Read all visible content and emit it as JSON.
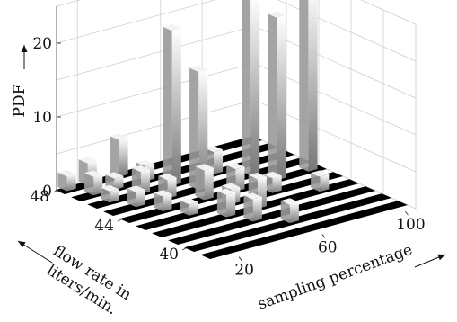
{
  "chart_data": {
    "type": "bar3d",
    "zlabel": "PDF",
    "xlabel": "sampling percentage",
    "ylabel_lines": [
      "flow rate in",
      "liters/min."
    ],
    "x_ticks": [
      20,
      60,
      100
    ],
    "y_ticks": [
      40,
      44,
      48
    ],
    "z_ticks": [
      0,
      10,
      20
    ],
    "xlim": [
      10,
      105
    ],
    "ylim": [
      38,
      48
    ],
    "zlim": [
      0,
      25
    ],
    "grid": true,
    "colors": {
      "bar_light": "#ffffff",
      "bar_dark": "#777777",
      "stripe": "#000000",
      "grid": "#cccccc"
    },
    "flow_rates": [
      39,
      40,
      41,
      42,
      43,
      44,
      45,
      46,
      47,
      48
    ],
    "bars": [
      {
        "x": 15,
        "y": 48,
        "z": 2
      },
      {
        "x": 20,
        "y": 47,
        "z": 2.5
      },
      {
        "x": 20,
        "y": 46,
        "z": 1.5
      },
      {
        "x": 25,
        "y": 48,
        "z": 3
      },
      {
        "x": 25,
        "y": 45,
        "z": 2
      },
      {
        "x": 30,
        "y": 47,
        "z": 1.5
      },
      {
        "x": 30,
        "y": 44,
        "z": 2
      },
      {
        "x": 35,
        "y": 46,
        "z": 3
      },
      {
        "x": 35,
        "y": 43,
        "z": 1.5
      },
      {
        "x": 40,
        "y": 48,
        "z": 5
      },
      {
        "x": 40,
        "y": 45,
        "z": 2.5
      },
      {
        "x": 45,
        "y": 42,
        "z": 3
      },
      {
        "x": 45,
        "y": 47,
        "z": 2
      },
      {
        "x": 50,
        "y": 44,
        "z": 4
      },
      {
        "x": 50,
        "y": 41,
        "z": 3
      },
      {
        "x": 50,
        "y": 46,
        "z": 21
      },
      {
        "x": 55,
        "y": 43,
        "z": 2
      },
      {
        "x": 55,
        "y": 45,
        "z": 16
      },
      {
        "x": 60,
        "y": 40,
        "z": 2.5
      },
      {
        "x": 60,
        "y": 42,
        "z": 4
      },
      {
        "x": 65,
        "y": 44,
        "z": 3
      },
      {
        "x": 70,
        "y": 46,
        "z": 3
      },
      {
        "x": 75,
        "y": 43,
        "z": 2
      },
      {
        "x": 80,
        "y": 45,
        "z": 24
      },
      {
        "x": 85,
        "y": 44,
        "z": 22
      },
      {
        "x": 90,
        "y": 42,
        "z": 2
      },
      {
        "x": 100,
        "y": 44,
        "z": 25
      }
    ]
  }
}
